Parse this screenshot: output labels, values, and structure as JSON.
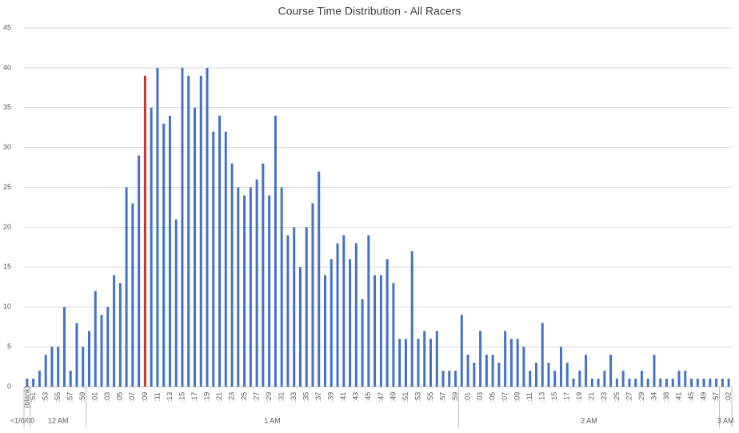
{
  "chart_data": {
    "type": "bar",
    "title": "Course Time Distribution - All Racers",
    "categories": [
      "(blank)",
      ":51",
      null,
      ":53",
      null,
      ":55",
      null,
      ":57",
      null,
      ":59",
      null,
      ":01",
      null,
      ":03",
      null,
      ":05",
      null,
      ":07",
      null,
      ":09",
      null,
      ":11",
      null,
      ":13",
      null,
      ":15",
      null,
      ":17",
      null,
      ":19",
      null,
      ":21",
      null,
      ":23",
      null,
      ":25",
      null,
      ":27",
      null,
      ":29",
      null,
      ":31",
      null,
      ":33",
      null,
      ":35",
      null,
      ":37",
      null,
      ":39",
      null,
      ":41",
      null,
      ":43",
      null,
      ":45",
      null,
      ":47",
      null,
      ":49",
      null,
      ":51",
      null,
      ":53",
      null,
      ":55",
      null,
      ":57",
      null,
      ":59",
      null,
      ":01",
      null,
      ":03",
      null,
      ":05",
      null,
      ":07",
      null,
      ":09",
      null,
      ":11",
      null,
      ":13",
      null,
      ":15",
      null,
      ":17",
      null,
      ":19",
      null,
      ":21",
      null,
      ":23",
      null,
      ":25",
      null,
      ":27",
      null,
      ":29",
      null,
      ":34",
      null,
      ":38",
      null,
      ":41",
      null,
      ":45",
      null,
      ":49",
      null,
      ":57",
      null,
      ":02"
    ],
    "values": [
      1,
      1,
      2,
      4,
      5,
      5,
      10,
      2,
      8,
      5,
      7,
      12,
      9,
      10,
      14,
      13,
      25,
      23,
      29,
      39,
      35,
      40,
      33,
      34,
      21,
      40,
      39,
      35,
      39,
      40,
      32,
      34,
      32,
      28,
      25,
      24,
      25,
      26,
      28,
      24,
      34,
      25,
      19,
      20,
      15,
      20,
      23,
      27,
      14,
      16,
      18,
      19,
      16,
      18,
      11,
      19,
      14,
      14,
      16,
      13,
      6,
      6,
      17,
      6,
      7,
      6,
      7,
      2,
      2,
      2,
      9,
      4,
      3,
      7,
      4,
      4,
      3,
      7,
      6,
      6,
      5,
      2,
      3,
      8,
      3,
      2,
      5,
      3,
      1,
      2,
      4,
      1,
      1,
      2,
      4,
      1,
      2,
      1,
      1,
      2,
      1,
      4,
      1,
      1,
      1,
      2,
      2,
      1,
      1,
      1,
      1,
      1,
      1,
      1
    ],
    "groups": [
      {
        "label": "<1/0/00",
        "start": 0,
        "end": 0
      },
      {
        "label": "12 AM",
        "start": 1,
        "end": 9
      },
      {
        "label": "1 AM",
        "start": 10,
        "end": 69
      },
      {
        "label": "2 AM",
        "start": 70,
        "end": 111
      },
      {
        "label": "3 AM",
        "start": 112,
        "end": 113
      }
    ],
    "color": "#4472c4",
    "highlight": {
      "index": 19,
      "color": "#c0392b"
    },
    "ylim": [
      0,
      45
    ],
    "yticks": [
      0,
      5,
      10,
      15,
      20,
      25,
      30,
      35,
      40,
      45
    ],
    "grid": true
  }
}
